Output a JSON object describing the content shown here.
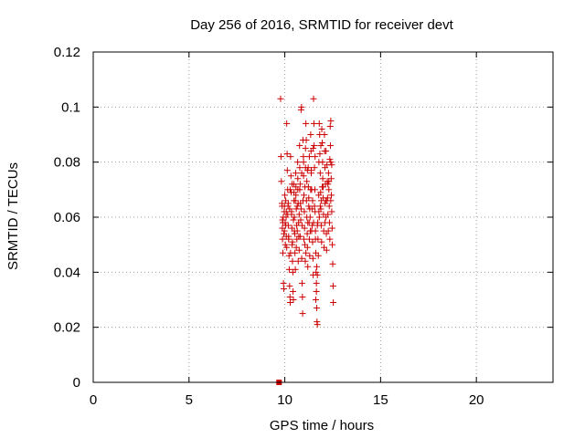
{
  "chart_data": {
    "type": "scatter",
    "title": "Day 256 of 2016, SRMTID for receiver devt",
    "xlabel": "GPS time / hours",
    "ylabel": "SRMTID / TECUs",
    "xlim": [
      0,
      24
    ],
    "ylim": [
      0,
      0.12
    ],
    "xticks": [
      0,
      5,
      10,
      15,
      20
    ],
    "xtick_labels": [
      "0",
      "5",
      "10",
      "15",
      "20"
    ],
    "yticks": [
      0,
      0.02,
      0.04,
      0.06,
      0.08,
      0.1,
      0.12
    ],
    "ytick_labels": [
      "0",
      "0.02",
      "0.04",
      "0.06",
      "0.08",
      "0.1",
      "0.12"
    ],
    "grid": true,
    "marker": "+",
    "marker_color": "#cc0000",
    "square_marker": {
      "x": 9.7,
      "y": 0.0
    },
    "series": [
      {
        "name": "SRMTID",
        "points": [
          [
            9.78,
            0.103
          ],
          [
            9.8,
            0.082
          ],
          [
            9.82,
            0.073
          ],
          [
            9.85,
            0.065
          ],
          [
            9.87,
            0.056
          ],
          [
            9.88,
            0.052
          ],
          [
            9.9,
            0.047
          ],
          [
            9.92,
            0.06
          ],
          [
            9.93,
            0.036
          ],
          [
            9.95,
            0.034
          ],
          [
            9.97,
            0.062
          ],
          [
            9.98,
            0.055
          ],
          [
            10.0,
            0.068
          ],
          [
            10.02,
            0.058
          ],
          [
            10.03,
            0.05
          ],
          [
            10.05,
            0.066
          ],
          [
            10.07,
            0.06
          ],
          [
            10.08,
            0.053
          ],
          [
            10.1,
            0.094
          ],
          [
            10.12,
            0.083
          ],
          [
            10.13,
            0.077
          ],
          [
            10.15,
            0.07
          ],
          [
            10.17,
            0.064
          ],
          [
            10.18,
            0.057
          ],
          [
            10.2,
            0.052
          ],
          [
            10.22,
            0.046
          ],
          [
            10.23,
            0.041
          ],
          [
            10.25,
            0.035
          ],
          [
            10.27,
            0.031
          ],
          [
            10.28,
            0.029
          ],
          [
            10.3,
            0.082
          ],
          [
            10.32,
            0.075
          ],
          [
            10.33,
            0.069
          ],
          [
            10.35,
            0.062
          ],
          [
            10.37,
            0.056
          ],
          [
            10.38,
            0.05
          ],
          [
            10.4,
            0.044
          ],
          [
            10.42,
            0.04
          ],
          [
            10.43,
            0.033
          ],
          [
            10.45,
            0.03
          ],
          [
            10.47,
            0.072
          ],
          [
            10.48,
            0.066
          ],
          [
            10.5,
            0.06
          ],
          [
            10.52,
            0.054
          ],
          [
            10.53,
            0.047
          ],
          [
            10.55,
            0.041
          ],
          [
            10.57,
            0.076
          ],
          [
            10.58,
            0.068
          ],
          [
            10.6,
            0.063
          ],
          [
            10.62,
            0.057
          ],
          [
            10.63,
            0.052
          ],
          [
            10.65,
            0.055
          ],
          [
            10.67,
            0.08
          ],
          [
            10.68,
            0.07
          ],
          [
            10.7,
            0.065
          ],
          [
            10.72,
            0.058
          ],
          [
            10.73,
            0.053
          ],
          [
            10.75,
            0.048
          ],
          [
            10.77,
            0.086
          ],
          [
            10.78,
            0.078
          ],
          [
            10.8,
            0.072
          ],
          [
            10.82,
            0.065
          ],
          [
            10.83,
            0.059
          ],
          [
            10.85,
            0.099
          ],
          [
            10.87,
            0.1
          ],
          [
            10.88,
            0.045
          ],
          [
            10.9,
            0.036
          ],
          [
            10.92,
            0.031
          ],
          [
            10.93,
            0.025
          ],
          [
            10.95,
            0.088
          ],
          [
            10.97,
            0.082
          ],
          [
            10.98,
            0.075
          ],
          [
            11.0,
            0.068
          ],
          [
            11.02,
            0.062
          ],
          [
            11.03,
            0.056
          ],
          [
            11.05,
            0.05
          ],
          [
            11.07,
            0.044
          ],
          [
            11.08,
            0.085
          ],
          [
            11.1,
            0.094
          ],
          [
            11.12,
            0.088
          ],
          [
            11.13,
            0.066
          ],
          [
            11.15,
            0.06
          ],
          [
            11.17,
            0.054
          ],
          [
            11.18,
            0.049
          ],
          [
            11.2,
            0.042
          ],
          [
            11.22,
            0.078
          ],
          [
            11.23,
            0.071
          ],
          [
            11.25,
            0.064
          ],
          [
            11.27,
            0.058
          ],
          [
            11.28,
            0.052
          ],
          [
            11.3,
            0.046
          ],
          [
            11.32,
            0.06
          ],
          [
            11.33,
            0.055
          ],
          [
            11.35,
            0.09
          ],
          [
            11.37,
            0.084
          ],
          [
            11.38,
            0.077
          ],
          [
            11.4,
            0.07
          ],
          [
            11.42,
            0.063
          ],
          [
            11.43,
            0.057
          ],
          [
            11.45,
            0.051
          ],
          [
            11.47,
            0.045
          ],
          [
            11.48,
            0.039
          ],
          [
            11.5,
            0.103
          ],
          [
            11.52,
            0.094
          ],
          [
            11.53,
            0.086
          ],
          [
            11.55,
            0.078
          ],
          [
            11.57,
            0.07
          ],
          [
            11.58,
            0.062
          ],
          [
            11.6,
            0.055
          ],
          [
            11.62,
            0.047
          ],
          [
            11.63,
            0.04
          ],
          [
            11.65,
            0.033
          ],
          [
            11.67,
            0.027
          ],
          [
            11.68,
            0.022
          ],
          [
            11.7,
            0.021
          ],
          [
            11.72,
            0.058
          ],
          [
            11.73,
            0.052
          ],
          [
            11.75,
            0.046
          ],
          [
            11.77,
            0.068
          ],
          [
            11.78,
            0.062
          ],
          [
            11.8,
            0.094
          ],
          [
            11.82,
            0.09
          ],
          [
            11.83,
            0.083
          ],
          [
            11.85,
            0.076
          ],
          [
            11.87,
            0.069
          ],
          [
            11.88,
            0.063
          ],
          [
            11.9,
            0.057
          ],
          [
            11.92,
            0.051
          ],
          [
            11.93,
            0.092
          ],
          [
            11.95,
            0.087
          ],
          [
            11.97,
            0.08
          ],
          [
            11.98,
            0.074
          ],
          [
            12.0,
            0.067
          ],
          [
            12.02,
            0.061
          ],
          [
            12.03,
            0.055
          ],
          [
            12.05,
            0.049
          ],
          [
            12.07,
            0.09
          ],
          [
            12.08,
            0.084
          ],
          [
            12.1,
            0.078
          ],
          [
            12.12,
            0.072
          ],
          [
            12.13,
            0.066
          ],
          [
            12.15,
            0.06
          ],
          [
            12.17,
            0.054
          ],
          [
            12.18,
            0.048
          ],
          [
            12.2,
            0.079
          ],
          [
            12.22,
            0.073
          ],
          [
            12.23,
            0.067
          ],
          [
            12.25,
            0.061
          ],
          [
            12.27,
            0.055
          ],
          [
            12.28,
            0.076
          ],
          [
            12.3,
            0.07
          ],
          [
            12.32,
            0.064
          ],
          [
            12.33,
            0.058
          ],
          [
            12.35,
            0.052
          ],
          [
            12.37,
            0.093
          ],
          [
            12.38,
            0.086
          ],
          [
            12.4,
            0.08
          ],
          [
            12.42,
            0.074
          ],
          [
            12.43,
            0.068
          ],
          [
            12.45,
            0.062
          ],
          [
            12.47,
            0.056
          ],
          [
            12.48,
            0.05
          ],
          [
            12.5,
            0.043
          ],
          [
            12.52,
            0.035
          ],
          [
            12.53,
            0.029
          ],
          [
            12.4,
            0.095
          ],
          [
            12.25,
            0.072
          ],
          [
            12.1,
            0.065
          ],
          [
            11.95,
            0.071
          ],
          [
            11.85,
            0.064
          ],
          [
            11.65,
            0.036
          ],
          [
            11.67,
            0.042
          ],
          [
            11.7,
            0.039
          ],
          [
            11.62,
            0.03
          ],
          [
            11.55,
            0.064
          ],
          [
            11.45,
            0.066
          ],
          [
            11.35,
            0.07
          ],
          [
            11.25,
            0.067
          ],
          [
            11.15,
            0.073
          ],
          [
            11.05,
            0.071
          ],
          [
            10.95,
            0.066
          ],
          [
            10.85,
            0.063
          ],
          [
            10.75,
            0.061
          ],
          [
            10.65,
            0.064
          ],
          [
            10.55,
            0.066
          ],
          [
            10.45,
            0.059
          ],
          [
            10.35,
            0.061
          ],
          [
            10.25,
            0.063
          ],
          [
            10.15,
            0.061
          ],
          [
            10.05,
            0.057
          ],
          [
            9.95,
            0.054
          ],
          [
            9.9,
            0.058
          ],
          [
            10.1,
            0.049
          ],
          [
            10.2,
            0.053
          ],
          [
            10.3,
            0.047
          ],
          [
            10.4,
            0.051
          ],
          [
            10.5,
            0.055
          ],
          [
            10.6,
            0.049
          ],
          [
            10.7,
            0.044
          ],
          [
            10.8,
            0.053
          ],
          [
            10.9,
            0.057
          ],
          [
            11.0,
            0.052
          ],
          [
            11.1,
            0.047
          ],
          [
            11.2,
            0.058
          ],
          [
            11.3,
            0.063
          ],
          [
            11.4,
            0.055
          ],
          [
            11.5,
            0.058
          ],
          [
            11.6,
            0.052
          ],
          [
            11.7,
            0.057
          ],
          [
            11.8,
            0.06
          ],
          [
            11.9,
            0.066
          ],
          [
            12.0,
            0.071
          ],
          [
            12.1,
            0.058
          ],
          [
            12.2,
            0.066
          ],
          [
            12.3,
            0.073
          ],
          [
            12.4,
            0.066
          ],
          [
            12.45,
            0.079
          ],
          [
            12.35,
            0.081
          ],
          [
            12.15,
            0.084
          ],
          [
            11.88,
            0.086
          ],
          [
            11.78,
            0.08
          ],
          [
            11.58,
            0.082
          ],
          [
            11.48,
            0.085
          ],
          [
            11.38,
            0.076
          ],
          [
            11.28,
            0.082
          ],
          [
            11.18,
            0.077
          ],
          [
            11.08,
            0.078
          ],
          [
            10.98,
            0.08
          ],
          [
            10.88,
            0.076
          ],
          [
            10.78,
            0.07
          ],
          [
            10.68,
            0.074
          ],
          [
            10.58,
            0.071
          ],
          [
            10.48,
            0.069
          ],
          [
            10.38,
            0.072
          ],
          [
            10.28,
            0.07
          ],
          [
            10.18,
            0.065
          ],
          [
            10.08,
            0.062
          ],
          [
            9.98,
            0.064
          ],
          [
            9.88,
            0.059
          ],
          [
            9.86,
            0.064
          ]
        ]
      }
    ]
  }
}
